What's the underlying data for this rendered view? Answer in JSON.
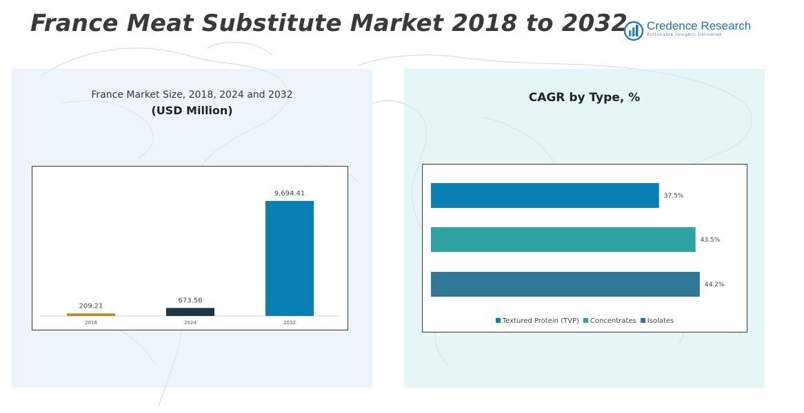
{
  "header": {
    "title": "France Meat Substitute Market 2018 to 2032"
  },
  "logo": {
    "name": "Credence Research",
    "tagline": "Actionable Insights Delivered",
    "icon": "bar-chart-logo-icon"
  },
  "left_panel": {
    "subtitle": "France Market Size, 2018, 2024 and 2032",
    "unit": "(USD Million)"
  },
  "right_panel": {
    "title": "CAGR by Type, %"
  },
  "chart_data": [
    {
      "type": "bar",
      "title": "France Market Size, 2018, 2024 and 2032",
      "ylabel": "(USD Million)",
      "categories": [
        "2018",
        "2024",
        "2032"
      ],
      "values": [
        209.21,
        673.56,
        9694.41
      ],
      "labels": [
        "209.21",
        "673.56",
        "9,694.41"
      ],
      "colors": [
        "#b88a1c",
        "#1d3544",
        "#0a7fb4"
      ],
      "ylim": [
        0,
        10500
      ],
      "grid": false,
      "legend": "none"
    },
    {
      "type": "bar",
      "orientation": "horizontal",
      "title": "CAGR by Type, %",
      "categories": [
        "Textured Protein (TVP)",
        "Concentrates",
        "Isolates"
      ],
      "values": [
        37.5,
        43.5,
        44.2
      ],
      "labels": [
        "37.5%",
        "43.5%",
        "44.2%"
      ],
      "colors": [
        "#0a7fb4",
        "#2fa3a3",
        "#2e7898"
      ],
      "xlim": [
        0,
        50
      ],
      "grid": false,
      "legend": "bottom"
    }
  ]
}
